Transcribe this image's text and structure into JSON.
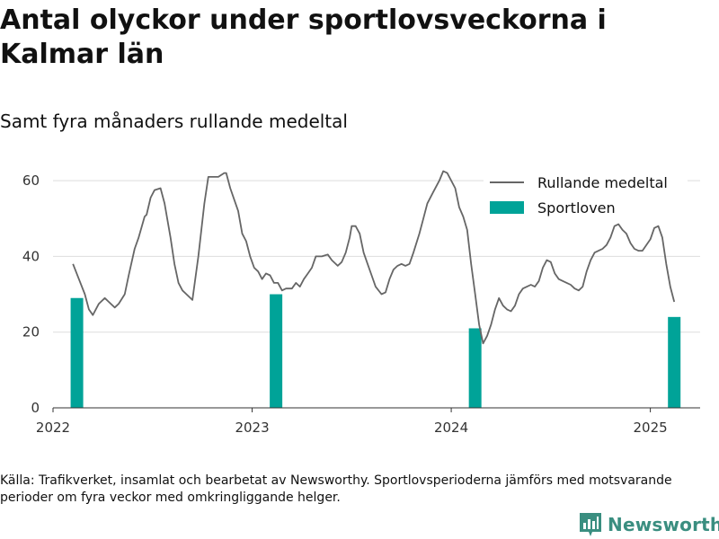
{
  "title": "Antal olyckor under sportlovsveckorna i Kalmar län",
  "subtitle": "Samt fyra månaders rullande medeltal",
  "source": "Källa: Trafikverket, insamlat och bearbetat av Newsworthy. Sportlovsperioderna jämförs med motsvarande perioder om fyra veckor med omkringliggande helger.",
  "brand": "Newsworthy",
  "colors": {
    "line": "#666666",
    "bars": "#00a398",
    "grid": "#dddddd",
    "brand": "#3a8e80"
  },
  "chart_data": {
    "type": "bar+line",
    "xlim": [
      2022.0,
      2025.25
    ],
    "ylim": [
      0,
      65
    ],
    "x_ticks": [
      {
        "value": 2022,
        "label": "2022"
      },
      {
        "value": 2023,
        "label": "2023"
      },
      {
        "value": 2024,
        "label": "2024"
      },
      {
        "value": 2025,
        "label": "2025"
      }
    ],
    "y_ticks": [
      {
        "value": 0,
        "label": "0"
      },
      {
        "value": 20,
        "label": "20"
      },
      {
        "value": 40,
        "label": "40"
      },
      {
        "value": 60,
        "label": "60"
      }
    ],
    "grid": true,
    "legend_position": "top-right",
    "series": [
      {
        "name": "Rullande medeltal",
        "kind": "line",
        "points": [
          [
            2022.1,
            38
          ],
          [
            2022.13,
            34
          ],
          [
            2022.16,
            30
          ],
          [
            2022.18,
            26
          ],
          [
            2022.2,
            24.5
          ],
          [
            2022.23,
            27.5
          ],
          [
            2022.26,
            29
          ],
          [
            2022.28,
            28
          ],
          [
            2022.31,
            26.5
          ],
          [
            2022.33,
            27.5
          ],
          [
            2022.36,
            30
          ],
          [
            2022.38,
            35
          ],
          [
            2022.41,
            42
          ],
          [
            2022.43,
            45
          ],
          [
            2022.46,
            50.5
          ],
          [
            2022.47,
            51
          ],
          [
            2022.49,
            55.5
          ],
          [
            2022.51,
            57.5
          ],
          [
            2022.54,
            58
          ],
          [
            2022.56,
            54
          ],
          [
            2022.59,
            45
          ],
          [
            2022.61,
            38
          ],
          [
            2022.63,
            33
          ],
          [
            2022.65,
            31
          ],
          [
            2022.67,
            30
          ],
          [
            2022.7,
            28.5
          ],
          [
            2022.73,
            40
          ],
          [
            2022.76,
            54
          ],
          [
            2022.78,
            61
          ],
          [
            2022.81,
            61
          ],
          [
            2022.83,
            61
          ],
          [
            2022.86,
            62
          ],
          [
            2022.87,
            62
          ],
          [
            2022.89,
            58
          ],
          [
            2022.91,
            55
          ],
          [
            2022.93,
            52
          ],
          [
            2022.95,
            46
          ],
          [
            2022.97,
            44
          ],
          [
            2022.99,
            40
          ],
          [
            2023.01,
            37
          ],
          [
            2023.03,
            36
          ],
          [
            2023.05,
            34
          ],
          [
            2023.07,
            35.5
          ],
          [
            2023.09,
            35
          ],
          [
            2023.11,
            33
          ],
          [
            2023.13,
            33
          ],
          [
            2023.15,
            31
          ],
          [
            2023.17,
            31.5
          ],
          [
            2023.2,
            31.5
          ],
          [
            2023.22,
            33
          ],
          [
            2023.24,
            32
          ],
          [
            2023.26,
            34
          ],
          [
            2023.28,
            35.5
          ],
          [
            2023.3,
            37
          ],
          [
            2023.32,
            40
          ],
          [
            2023.35,
            40
          ],
          [
            2023.38,
            40.5
          ],
          [
            2023.4,
            39
          ],
          [
            2023.43,
            37.5
          ],
          [
            2023.45,
            38.5
          ],
          [
            2023.47,
            41
          ],
          [
            2023.49,
            45
          ],
          [
            2023.5,
            48
          ],
          [
            2023.52,
            48
          ],
          [
            2023.54,
            46
          ],
          [
            2023.56,
            41
          ],
          [
            2023.58,
            38
          ],
          [
            2023.6,
            35
          ],
          [
            2023.62,
            32
          ],
          [
            2023.65,
            30
          ],
          [
            2023.67,
            30.5
          ],
          [
            2023.69,
            34
          ],
          [
            2023.71,
            36.5
          ],
          [
            2023.73,
            37.5
          ],
          [
            2023.75,
            38
          ],
          [
            2023.77,
            37.5
          ],
          [
            2023.79,
            38
          ],
          [
            2023.81,
            41
          ],
          [
            2023.84,
            46
          ],
          [
            2023.86,
            50
          ],
          [
            2023.88,
            54
          ],
          [
            2023.91,
            57
          ],
          [
            2023.94,
            60
          ],
          [
            2023.96,
            62.5
          ],
          [
            2023.98,
            62
          ],
          [
            2023.99,
            61
          ],
          [
            2024.02,
            58
          ],
          [
            2024.04,
            53
          ],
          [
            2024.06,
            50.5
          ],
          [
            2024.08,
            47
          ],
          [
            2024.1,
            38
          ],
          [
            2024.12,
            30
          ],
          [
            2024.14,
            22
          ],
          [
            2024.16,
            17
          ],
          [
            2024.18,
            19
          ],
          [
            2024.2,
            22
          ],
          [
            2024.22,
            26
          ],
          [
            2024.24,
            29
          ],
          [
            2024.26,
            27
          ],
          [
            2024.28,
            26
          ],
          [
            2024.3,
            25.5
          ],
          [
            2024.32,
            27
          ],
          [
            2024.34,
            30
          ],
          [
            2024.36,
            31.5
          ],
          [
            2024.38,
            32
          ],
          [
            2024.4,
            32.5
          ],
          [
            2024.42,
            32
          ],
          [
            2024.44,
            33.5
          ],
          [
            2024.46,
            37
          ],
          [
            2024.48,
            39
          ],
          [
            2024.5,
            38.5
          ],
          [
            2024.52,
            35.5
          ],
          [
            2024.54,
            34
          ],
          [
            2024.56,
            33.5
          ],
          [
            2024.58,
            33
          ],
          [
            2024.6,
            32.5
          ],
          [
            2024.62,
            31.5
          ],
          [
            2024.64,
            31
          ],
          [
            2024.66,
            32
          ],
          [
            2024.68,
            36
          ],
          [
            2024.7,
            39
          ],
          [
            2024.72,
            41
          ],
          [
            2024.74,
            41.5
          ],
          [
            2024.76,
            42
          ],
          [
            2024.78,
            43
          ],
          [
            2024.8,
            45
          ],
          [
            2024.82,
            48
          ],
          [
            2024.84,
            48.5
          ],
          [
            2024.86,
            47
          ],
          [
            2024.88,
            46
          ],
          [
            2024.9,
            43.5
          ],
          [
            2024.92,
            42
          ],
          [
            2024.94,
            41.5
          ],
          [
            2024.96,
            41.5
          ],
          [
            2024.98,
            43
          ],
          [
            2025.0,
            44.5
          ],
          [
            2025.02,
            47.5
          ],
          [
            2025.04,
            48
          ],
          [
            2025.06,
            45
          ],
          [
            2025.08,
            38
          ],
          [
            2025.1,
            32
          ],
          [
            2025.12,
            28
          ]
        ]
      },
      {
        "name": "Sportloven",
        "kind": "bar",
        "points": [
          [
            2022.12,
            29
          ],
          [
            2023.12,
            30
          ],
          [
            2024.12,
            21
          ],
          [
            2025.12,
            24
          ]
        ]
      }
    ]
  }
}
